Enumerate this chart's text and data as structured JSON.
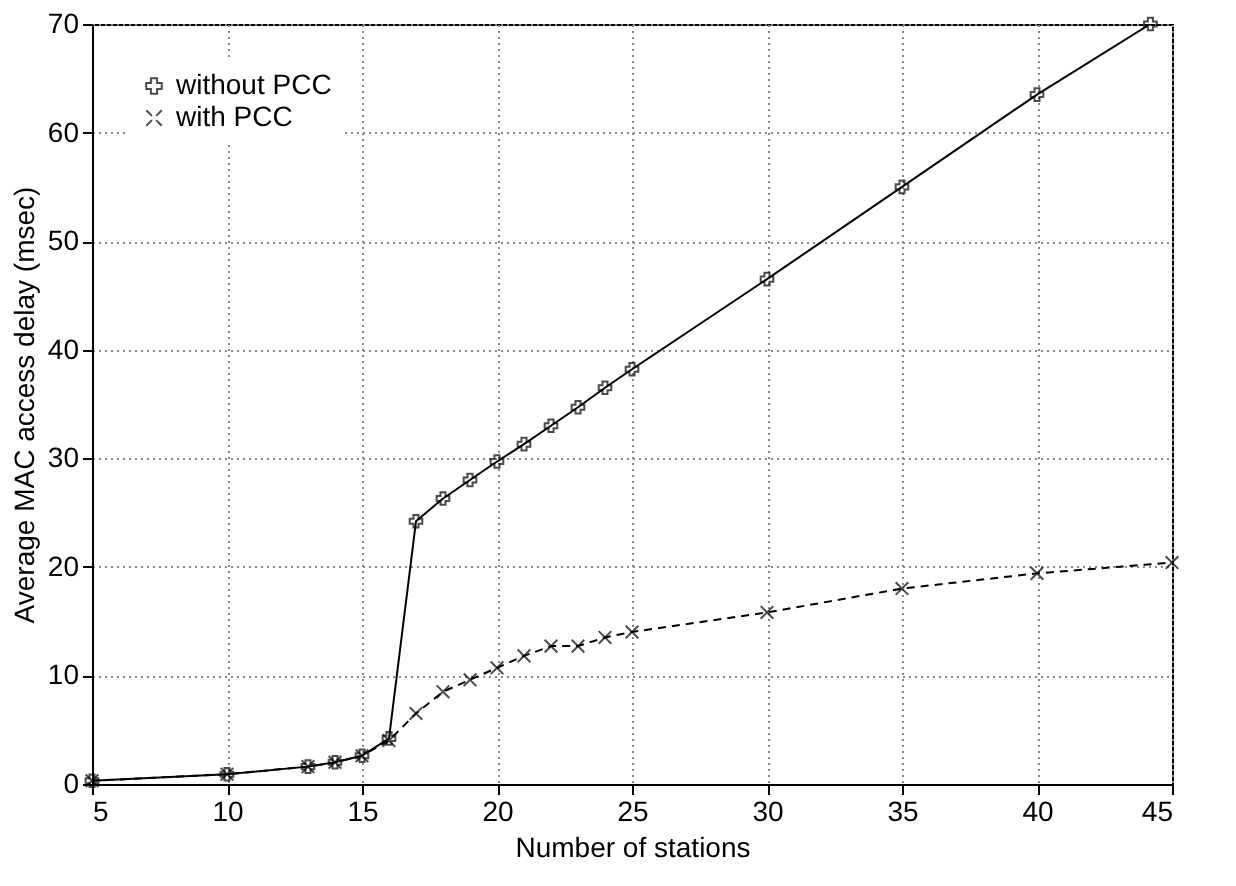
{
  "chart_data": {
    "type": "line",
    "xlabel": "Number of stations",
    "ylabel": "Average MAC access delay (msec)",
    "xlim": [
      5,
      45
    ],
    "xticks": [
      5,
      10,
      15,
      20,
      25,
      30,
      35,
      40,
      45
    ],
    "ylim": [
      0,
      70
    ],
    "yticks": [
      0,
      10,
      20,
      30,
      40,
      50,
      60,
      70
    ],
    "grid": true,
    "legend": "top left",
    "series": [
      {
        "name": "without PCC",
        "color": "#000000",
        "marker": "cross",
        "line_style": "solid",
        "x": [
          5,
          10,
          13,
          14,
          15,
          16,
          17,
          18,
          19,
          20,
          21,
          22,
          23,
          24,
          25,
          30,
          35,
          40,
          44.2
        ],
        "values": [
          0.3,
          0.9,
          1.6,
          2.0,
          2.6,
          4.2,
          24.2,
          26.3,
          28,
          29.7,
          31.3,
          33,
          34.7,
          36.5,
          38.2,
          46.5,
          55,
          63.5,
          70
        ]
      },
      {
        "name": "with PCC",
        "color": "#000000",
        "marker": "x",
        "line_style": "dashed",
        "x": [
          5,
          10,
          13,
          14,
          15,
          16,
          17,
          18,
          19,
          20,
          21,
          22,
          23,
          24,
          25,
          30,
          35,
          40,
          45
        ],
        "values": [
          0.3,
          0.9,
          1.6,
          2.0,
          2.6,
          4.0,
          6.5,
          8.5,
          9.6,
          10.7,
          11.8,
          12.7,
          12.7,
          13.5,
          14.0,
          15.8,
          18.0,
          19.4,
          20.4
        ]
      }
    ]
  }
}
